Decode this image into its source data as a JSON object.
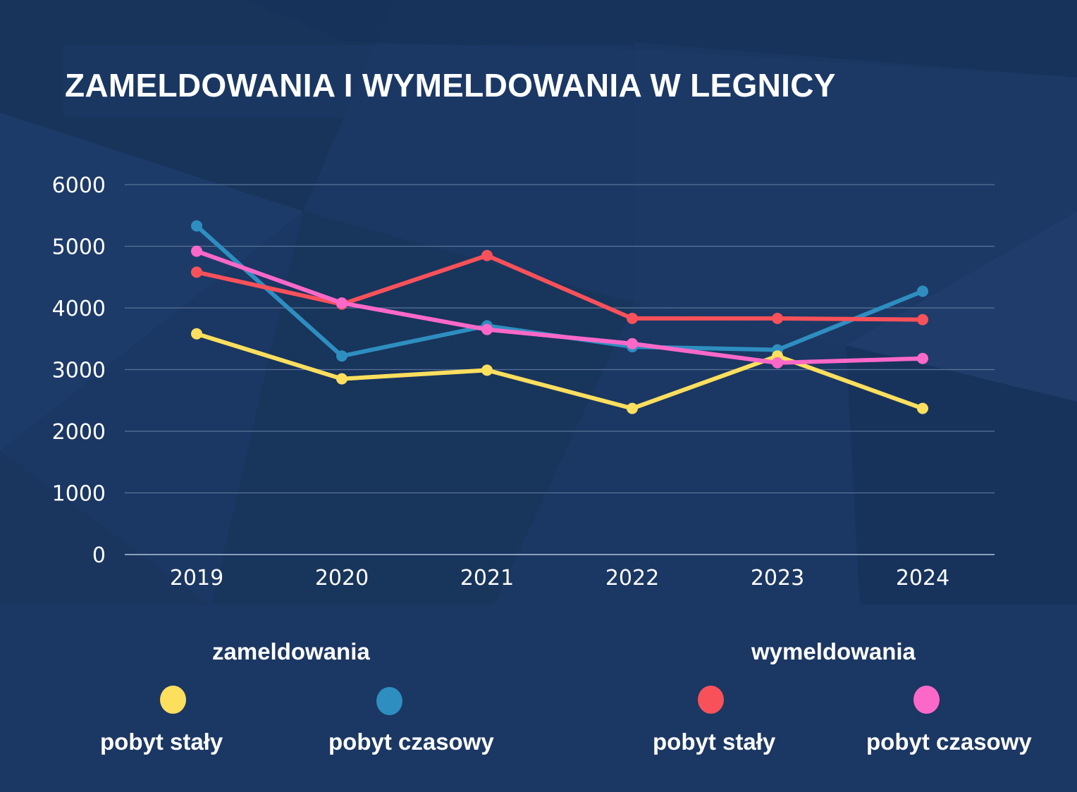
{
  "header": {
    "title": "ZAMELDOWANIA I WYMELDOWANIA W LEGNICY"
  },
  "colors": {
    "background": "#1b3763",
    "grid": "#5a7396",
    "zam_staly": "#fddf5e",
    "zam_czasowy": "#2e8ec0",
    "wym_staly": "#f8515a",
    "wym_czasowy": "#fc68c8"
  },
  "legend": {
    "groups": [
      {
        "title": "zameldowania",
        "items": [
          {
            "label": "pobyt stały",
            "color": "#fddf5e"
          },
          {
            "label": "pobyt czasowy",
            "color": "#2e8ec0"
          }
        ]
      },
      {
        "title": "wymeldowania",
        "items": [
          {
            "label": "pobyt stały",
            "color": "#f8515a"
          },
          {
            "label": "pobyt czasowy",
            "color": "#fc68c8"
          }
        ]
      }
    ]
  },
  "chart_data": {
    "type": "line",
    "title": "ZAMELDOWANIA I WYMELDOWANIA W LEGNICY",
    "x": [
      "2019",
      "2020",
      "2021",
      "2022",
      "2023",
      "2024"
    ],
    "ylim": [
      0,
      6000
    ],
    "yticks": [
      "0",
      "1000",
      "2000",
      "3000",
      "4000",
      "5000",
      "6000"
    ],
    "grid": true,
    "legend_position": "bottom",
    "series": [
      {
        "group": "zameldowania",
        "name": "pobyt czasowy",
        "color": "#2e8ec0",
        "values": [
          5330,
          3220,
          3710,
          3370,
          3320,
          4270
        ]
      },
      {
        "group": "wymeldowania",
        "name": "pobyt stały",
        "color": "#f8515a",
        "values": [
          4580,
          4060,
          4850,
          3830,
          3830,
          3810
        ]
      },
      {
        "group": "zameldowania",
        "name": "pobyt stały",
        "color": "#fddf5e",
        "values": [
          3580,
          2850,
          2990,
          2370,
          3220,
          2370
        ]
      },
      {
        "group": "wymeldowania",
        "name": "pobyt czasowy",
        "color": "#fc68c8",
        "values": [
          4920,
          4080,
          3650,
          3420,
          3110,
          3180
        ]
      }
    ]
  }
}
